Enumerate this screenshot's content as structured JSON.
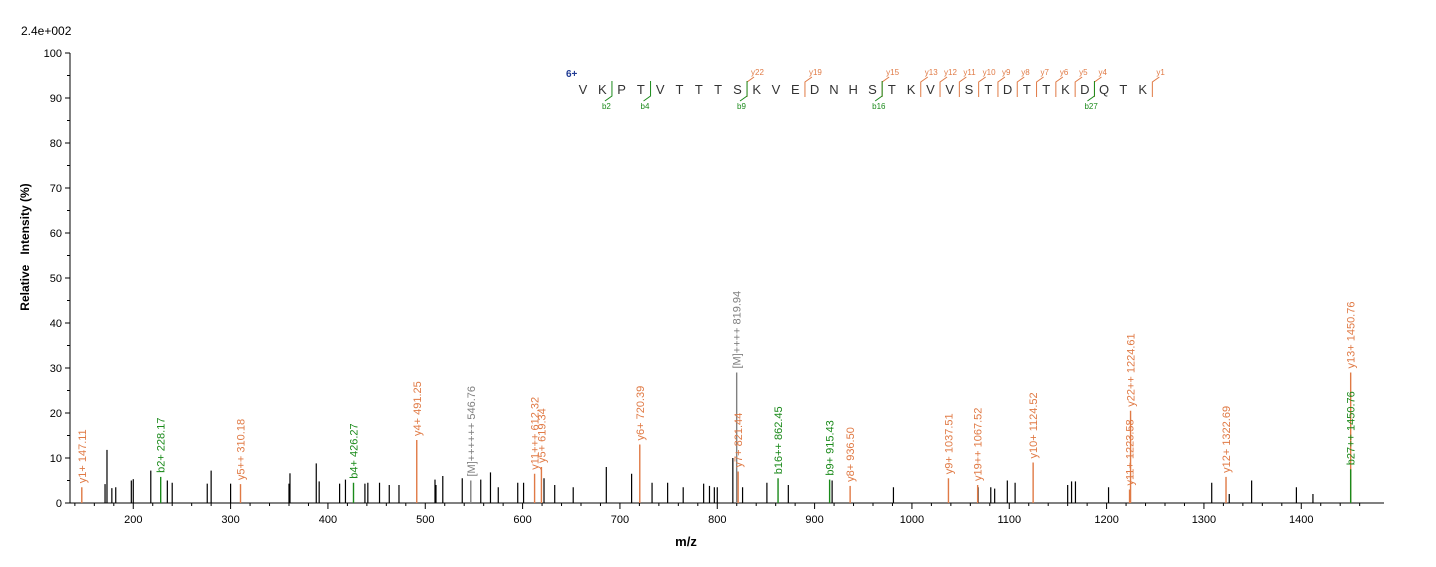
{
  "chart_data": {
    "type": "bar",
    "subtype": "ms2-spectrum",
    "max_intensity_label": "2.4e+002",
    "xlabel": "m/z",
    "ylabel": "Relative   Intensity (%)",
    "xlim": [
      135,
      1485
    ],
    "ylim": [
      0,
      100
    ],
    "x_ticks": [
      200,
      300,
      400,
      500,
      600,
      700,
      800,
      900,
      1000,
      1100,
      1200,
      1300,
      1400
    ],
    "y_ticks": [
      0,
      10,
      20,
      30,
      40,
      50,
      60,
      70,
      80,
      90,
      100
    ],
    "colors": {
      "y_ion": "#e07a45",
      "b_ion": "#1a8a1a",
      "precursor": "#808080",
      "unassigned": "#000000",
      "sequence": "#333333",
      "charge": "#1f3a93"
    },
    "peptide": {
      "charge": "6+",
      "sequence": [
        "V",
        "K",
        "P",
        "T",
        "V",
        "T",
        "T",
        "T",
        "S",
        "K",
        "V",
        "E",
        "D",
        "N",
        "H",
        "S",
        "T",
        "K",
        "V",
        "V",
        "S",
        "T",
        "D",
        "T",
        "T",
        "K",
        "D",
        "Q",
        "T",
        "K"
      ],
      "y_marks": [
        {
          "after": 8,
          "label": "y22"
        },
        {
          "after": 11,
          "label": "y19"
        },
        {
          "after": 15,
          "label": "y15"
        },
        {
          "after": 17,
          "label": "y13"
        },
        {
          "after": 18,
          "label": "y12"
        },
        {
          "after": 19,
          "label": "y11"
        },
        {
          "after": 20,
          "label": "y10"
        },
        {
          "after": 21,
          "label": "y9"
        },
        {
          "after": 22,
          "label": "y8"
        },
        {
          "after": 23,
          "label": "y7"
        },
        {
          "after": 24,
          "label": "y6"
        },
        {
          "after": 25,
          "label": "y5"
        },
        {
          "after": 26,
          "label": "y4"
        },
        {
          "after": 29,
          "label": "y1"
        }
      ],
      "b_marks": [
        {
          "after": 2,
          "label": "b2"
        },
        {
          "after": 4,
          "label": "b4"
        },
        {
          "after": 9,
          "label": "b9"
        },
        {
          "after": 16,
          "label": "b16"
        },
        {
          "after": 27,
          "label": "b27"
        }
      ]
    },
    "annotated_peaks": [
      {
        "mz": 147.11,
        "intensity": 3.5,
        "type": "y",
        "label": "y1+ 147.11"
      },
      {
        "mz": 228.17,
        "intensity": 5.8,
        "type": "b",
        "label": "b2+ 228.17"
      },
      {
        "mz": 310.18,
        "intensity": 4.2,
        "type": "y",
        "label": "y5++ 310.18"
      },
      {
        "mz": 426.27,
        "intensity": 4.5,
        "type": "b",
        "label": "b4+ 426.27"
      },
      {
        "mz": 491.25,
        "intensity": 14.0,
        "type": "y",
        "label": "y4+ 491.25"
      },
      {
        "mz": 546.76,
        "intensity": 5.0,
        "type": "precursor",
        "label": "[M]++++++ 546.76"
      },
      {
        "mz": 612.32,
        "intensity": 6.5,
        "type": "y",
        "label": "y11+++ 612.32"
      },
      {
        "mz": 619.34,
        "intensity": 8.0,
        "type": "y",
        "label": "y5+ 619.34"
      },
      {
        "mz": 720.39,
        "intensity": 13.0,
        "type": "y",
        "label": "y6+ 720.39"
      },
      {
        "mz": 819.94,
        "intensity": 29.0,
        "type": "precursor",
        "label": "[M]++++ 819.94"
      },
      {
        "mz": 821.44,
        "intensity": 7.0,
        "type": "y",
        "label": "y7+ 821.44"
      },
      {
        "mz": 862.45,
        "intensity": 5.5,
        "type": "b",
        "label": "b16++ 862.45"
      },
      {
        "mz": 915.43,
        "intensity": 5.2,
        "type": "b",
        "label": "b9+ 915.43"
      },
      {
        "mz": 936.5,
        "intensity": 3.8,
        "type": "y",
        "label": "y8+ 936.50"
      },
      {
        "mz": 1037.51,
        "intensity": 5.5,
        "type": "y",
        "label": "y9+ 1037.51"
      },
      {
        "mz": 1067.52,
        "intensity": 4.0,
        "type": "y",
        "label": "y19++ 1067.52"
      },
      {
        "mz": 1124.52,
        "intensity": 9.0,
        "type": "y",
        "label": "y10+ 1124.52"
      },
      {
        "mz": 1223.58,
        "intensity": 3.0,
        "type": "y",
        "label": "y11+ 1223.58"
      },
      {
        "mz": 1224.61,
        "intensity": 20.5,
        "type": "y",
        "label": "y22++ 1224.61"
      },
      {
        "mz": 1322.69,
        "intensity": 5.8,
        "type": "y",
        "label": "y12+ 1322.69"
      },
      {
        "mz": 1450.76,
        "intensity": 29.0,
        "type": "y",
        "label": "y13+ 1450.76"
      },
      {
        "mz": 1450.76,
        "intensity": 7.5,
        "type": "b",
        "label": "b27++ 1450.76"
      }
    ],
    "unassigned_peaks": [
      [
        171,
        4.2
      ],
      [
        173,
        11.8
      ],
      [
        178,
        3.3
      ],
      [
        182,
        3.5
      ],
      [
        198,
        5.0
      ],
      [
        200,
        5.3
      ],
      [
        218,
        7.2
      ],
      [
        235,
        5.0
      ],
      [
        240,
        4.5
      ],
      [
        276,
        4.3
      ],
      [
        280,
        7.2
      ],
      [
        300,
        4.3
      ],
      [
        360,
        4.3
      ],
      [
        361,
        6.6
      ],
      [
        388,
        8.8
      ],
      [
        391,
        4.8
      ],
      [
        412,
        4.3
      ],
      [
        418,
        5.2
      ],
      [
        438,
        4.3
      ],
      [
        441,
        4.5
      ],
      [
        453,
        4.5
      ],
      [
        463,
        4.0
      ],
      [
        473,
        4.0
      ],
      [
        510,
        5.2
      ],
      [
        511,
        4.0
      ],
      [
        518,
        6.0
      ],
      [
        538,
        5.5
      ],
      [
        557,
        5.2
      ],
      [
        567,
        6.8
      ],
      [
        575,
        3.5
      ],
      [
        595,
        4.5
      ],
      [
        601,
        4.5
      ],
      [
        622,
        5.5
      ],
      [
        633,
        4.0
      ],
      [
        652,
        3.5
      ],
      [
        686,
        8.0
      ],
      [
        712,
        6.5
      ],
      [
        733,
        4.5
      ],
      [
        749,
        4.5
      ],
      [
        765,
        3.5
      ],
      [
        786,
        4.3
      ],
      [
        792,
        3.8
      ],
      [
        797,
        3.5
      ],
      [
        800,
        3.5
      ],
      [
        816,
        10.0
      ],
      [
        826,
        3.5
      ],
      [
        851,
        4.5
      ],
      [
        873,
        4.0
      ],
      [
        918,
        5.0
      ],
      [
        981,
        3.5
      ],
      [
        1068,
        3.5
      ],
      [
        1081,
        3.5
      ],
      [
        1085,
        3.2
      ],
      [
        1098,
        5.0
      ],
      [
        1106,
        4.5
      ],
      [
        1160,
        4.0
      ],
      [
        1164,
        4.8
      ],
      [
        1168,
        4.8
      ],
      [
        1202,
        3.5
      ],
      [
        1308,
        4.5
      ],
      [
        1326,
        2.0
      ],
      [
        1349,
        5.0
      ],
      [
        1395,
        3.5
      ],
      [
        1412,
        2.0
      ]
    ]
  }
}
